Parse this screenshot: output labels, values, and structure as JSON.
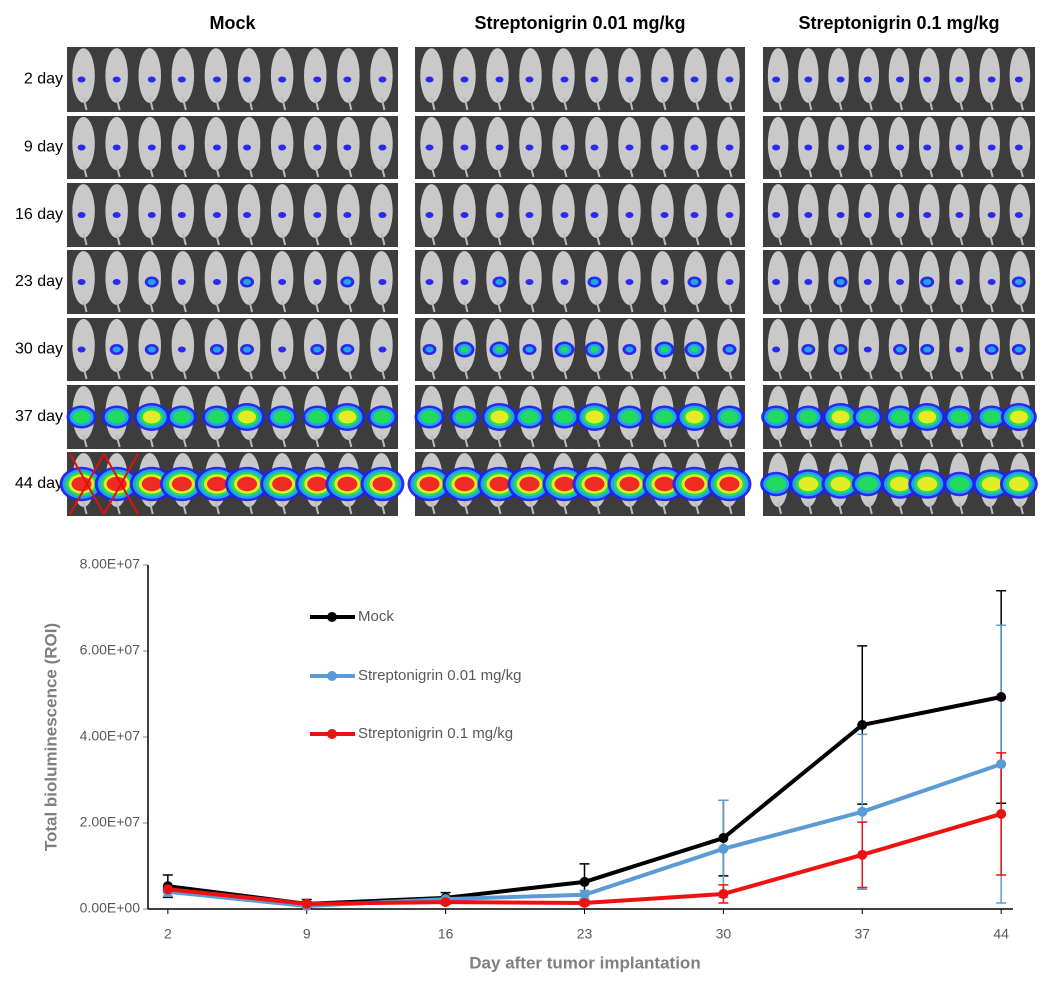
{
  "image_panel": {
    "columns": [
      "Mock",
      "Streptonigrin 0.01 mg/kg",
      "Streptonigrin 0.1 mg/kg"
    ],
    "rows": [
      "2 day",
      "9 day",
      "16 day",
      "23 day",
      "30 day",
      "37 day",
      "44 day"
    ]
  },
  "chart_data": {
    "type": "line",
    "xlabel": "Day after tumor implantation",
    "ylabel": "Total bioluminescence (ROI)",
    "x": [
      2,
      9,
      16,
      23,
      30,
      37,
      44
    ],
    "xlim": [
      1,
      45
    ],
    "xticks": [
      2,
      9,
      16,
      23,
      30,
      37,
      44
    ],
    "ylim": [
      0,
      80000000
    ],
    "yticks": [
      {
        "value": 0,
        "label": "0.00E+00"
      },
      {
        "value": 20000000,
        "label": "2.00E+07"
      },
      {
        "value": 40000000,
        "label": "4.00E+07"
      },
      {
        "value": 60000000,
        "label": "6.00E+07"
      },
      {
        "value": 80000000,
        "label": "8.00E+07"
      }
    ],
    "series": [
      {
        "name": "Mock",
        "color": "#000000",
        "values": [
          5300000,
          1200000,
          2600000,
          6300000,
          16500000,
          42800000,
          49300000
        ],
        "errors": [
          2600000,
          1000000,
          1200000,
          4200000,
          8800000,
          18400000,
          24700000
        ]
      },
      {
        "name": "Streptonigrin 0.01 mg/kg",
        "color": "#5b9bd5",
        "values": [
          4000000,
          700000,
          2300000,
          3300000,
          14000000,
          22600000,
          33700000
        ],
        "errors": [
          1000000,
          300000,
          500000,
          1000000,
          11300000,
          18000000,
          32300000
        ]
      },
      {
        "name": "Streptonigrin 0.1 mg/kg",
        "color": "#ee1111",
        "values": [
          4600000,
          1200000,
          1600000,
          1400000,
          3500000,
          12600000,
          22100000
        ],
        "errors": [
          500000,
          500000,
          500000,
          500000,
          2100000,
          7600000,
          14200000
        ]
      }
    ]
  }
}
